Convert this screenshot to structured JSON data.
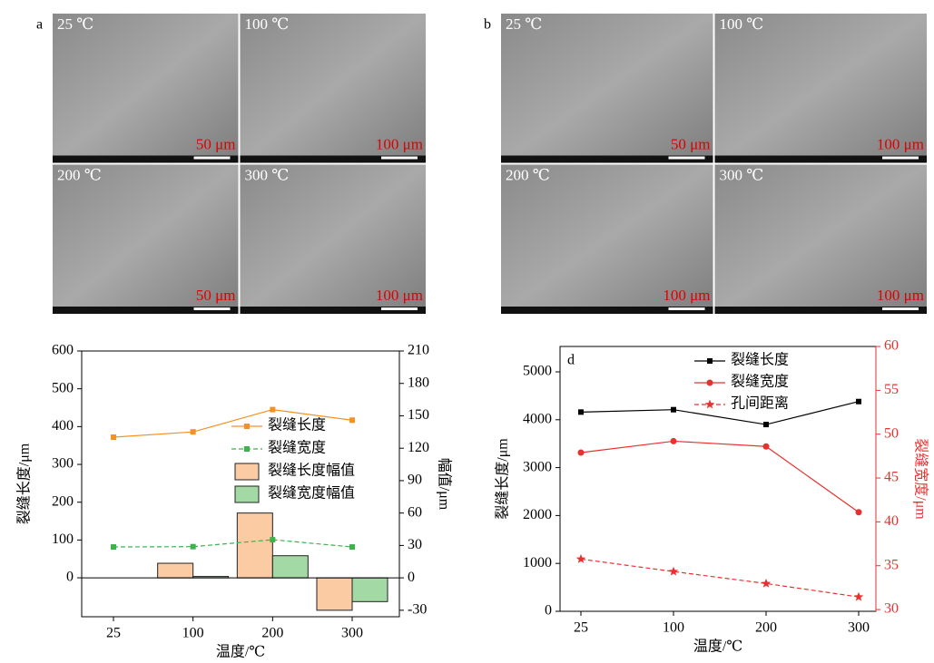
{
  "panels": [
    {
      "label": "a",
      "tiles": [
        {
          "temp": "25 ℃",
          "scale": "50 μm"
        },
        {
          "temp": "100 ℃",
          "scale": "100 μm"
        },
        {
          "temp": "200 ℃",
          "scale": "50 μm"
        },
        {
          "temp": "300 ℃",
          "scale": "100 μm"
        }
      ]
    },
    {
      "label": "b",
      "tiles": [
        {
          "temp": "25 ℃",
          "scale": "50 μm"
        },
        {
          "temp": "100 ℃",
          "scale": "100 μm"
        },
        {
          "temp": "200 ℃",
          "scale": "100 μm"
        },
        {
          "temp": "300 ℃",
          "scale": "100 μm"
        }
      ]
    }
  ],
  "chart_data": [
    {
      "type": "line",
      "xlabel": "温度/℃",
      "ylabel": "裂缝长度/μm",
      "y2label": "幅值/μm",
      "categories": [
        "25",
        "100",
        "200",
        "300"
      ],
      "ylim": [
        -103,
        600
      ],
      "yticks": [
        0,
        100,
        200,
        300,
        400,
        500,
        600
      ],
      "y2lim": [
        -36,
        210
      ],
      "y2ticks": [
        -30,
        0,
        30,
        60,
        90,
        120,
        150,
        180,
        210
      ],
      "series": [
        {
          "name": "裂缝长度",
          "type": "line",
          "color": "#f39220",
          "marker": "square",
          "style": "solid",
          "values": [
            372,
            386,
            445,
            417
          ]
        },
        {
          "name": "裂缝宽度",
          "type": "line",
          "color": "#3cb44b",
          "marker": "square",
          "style": "dashed",
          "axis": "y2",
          "values": [
            28.6,
            28.9,
            35.3,
            28.6
          ]
        },
        {
          "name": "裂缝长度幅值",
          "type": "bar",
          "color": "#fbcba3",
          "axis": "y2",
          "values": [
            0,
            13.5,
            60,
            -30
          ]
        },
        {
          "name": "裂缝宽度幅值",
          "type": "bar",
          "color": "#a3d9a5",
          "axis": "y2",
          "values": [
            0,
            1.3,
            20.5,
            -22
          ]
        }
      ]
    },
    {
      "type": "line",
      "panel_label": "d",
      "xlabel": "温度/℃",
      "ylabel": "裂缝长度/μm",
      "y2label": "裂缝宽度/μm",
      "y2color": "#e8312f",
      "categories": [
        "25",
        "100",
        "200",
        "300"
      ],
      "ylim": [
        0,
        5530
      ],
      "yticks": [
        0,
        1000,
        2000,
        3000,
        4000,
        5000
      ],
      "y2lim": [
        29.8,
        60
      ],
      "y2ticks": [
        30,
        35,
        40,
        45,
        50,
        55,
        60
      ],
      "series": [
        {
          "name": "裂缝长度",
          "type": "line",
          "color": "#000000",
          "marker": "square",
          "style": "solid",
          "values": [
            4160,
            4210,
            3900,
            4380
          ]
        },
        {
          "name": "裂缝宽度",
          "type": "line",
          "color": "#e8312f",
          "marker": "circle",
          "style": "solid",
          "axis": "y2",
          "values": [
            47.9,
            49.2,
            48.6,
            41.1
          ]
        },
        {
          "name": "孔间距离",
          "type": "line",
          "color": "#e8312f",
          "marker": "star",
          "style": "dashed",
          "values": [
            1090,
            830,
            580,
            300
          ]
        }
      ]
    }
  ]
}
